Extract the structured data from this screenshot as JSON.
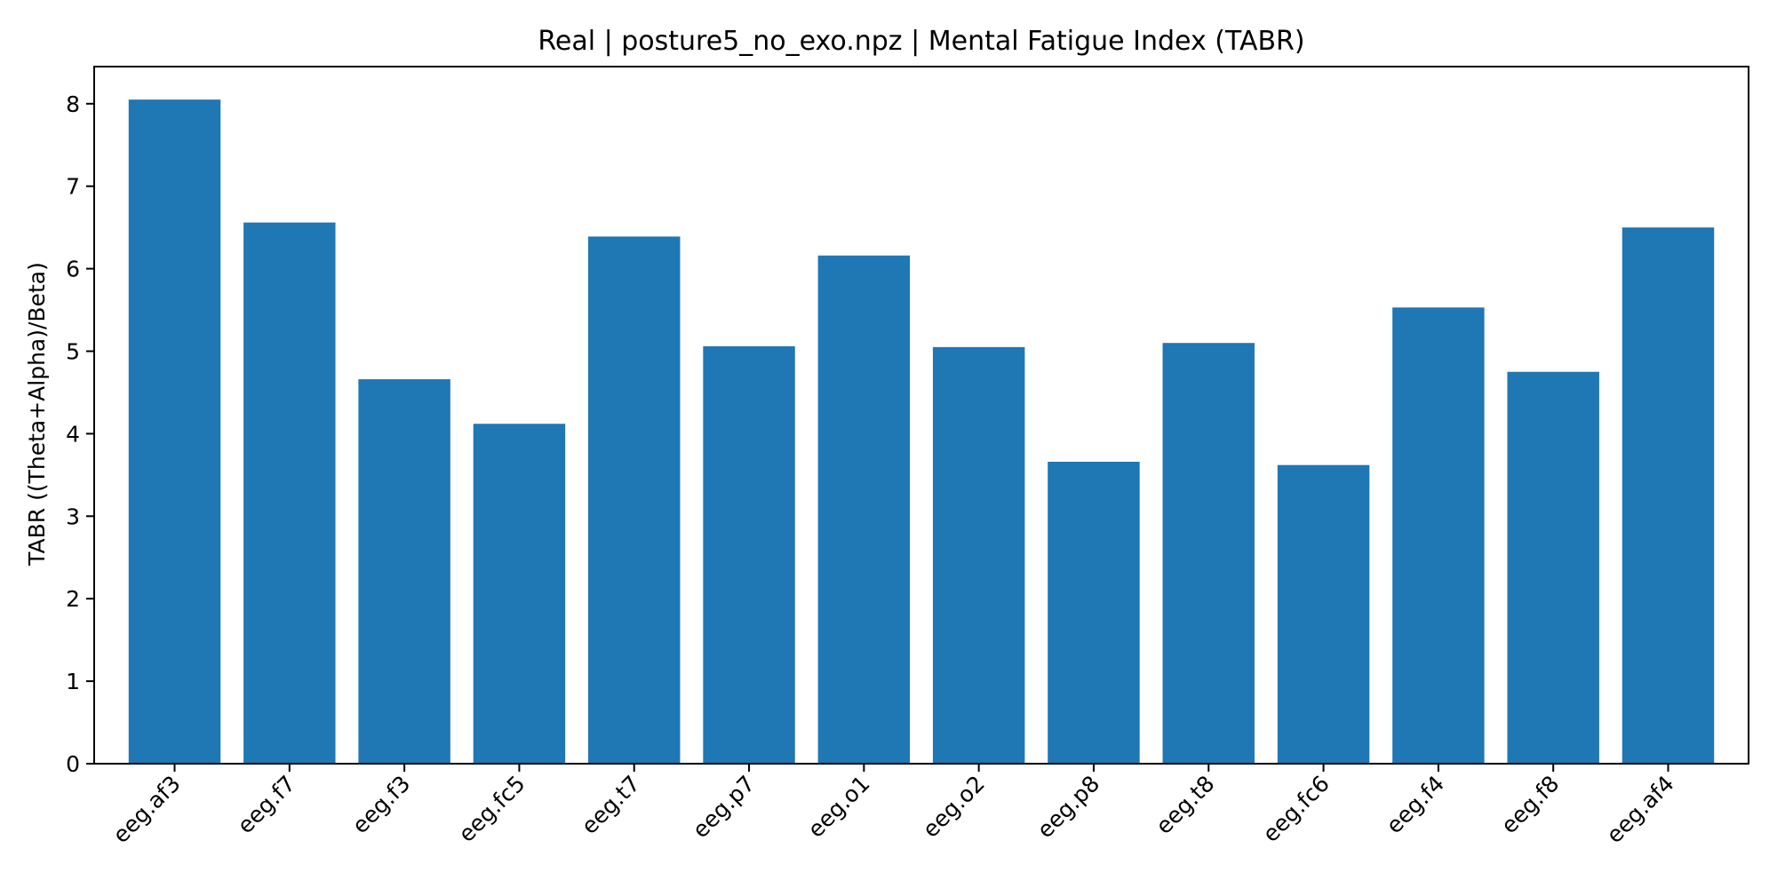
{
  "chart_data": {
    "type": "bar",
    "title": "Real | posture5_no_exo.npz | Mental Fatigue Index (TABR)",
    "xlabel": "",
    "ylabel": "TABR ((Theta+Alpha)/Beta)",
    "categories": [
      "eeg.af3",
      "eeg.f7",
      "eeg.f3",
      "eeg.fc5",
      "eeg.t7",
      "eeg.p7",
      "eeg.o1",
      "eeg.o2",
      "eeg.p8",
      "eeg.t8",
      "eeg.fc6",
      "eeg.f4",
      "eeg.f8",
      "eeg.af4"
    ],
    "values": [
      8.05,
      6.56,
      4.66,
      4.12,
      6.39,
      5.06,
      6.16,
      5.05,
      3.66,
      5.1,
      3.62,
      5.53,
      4.75,
      6.5
    ],
    "ylim": [
      0,
      8.45
    ],
    "yticks": [
      0,
      1,
      2,
      3,
      4,
      5,
      6,
      7,
      8
    ],
    "bar_color": "#1f77b4",
    "grid": false,
    "legend": "none"
  }
}
